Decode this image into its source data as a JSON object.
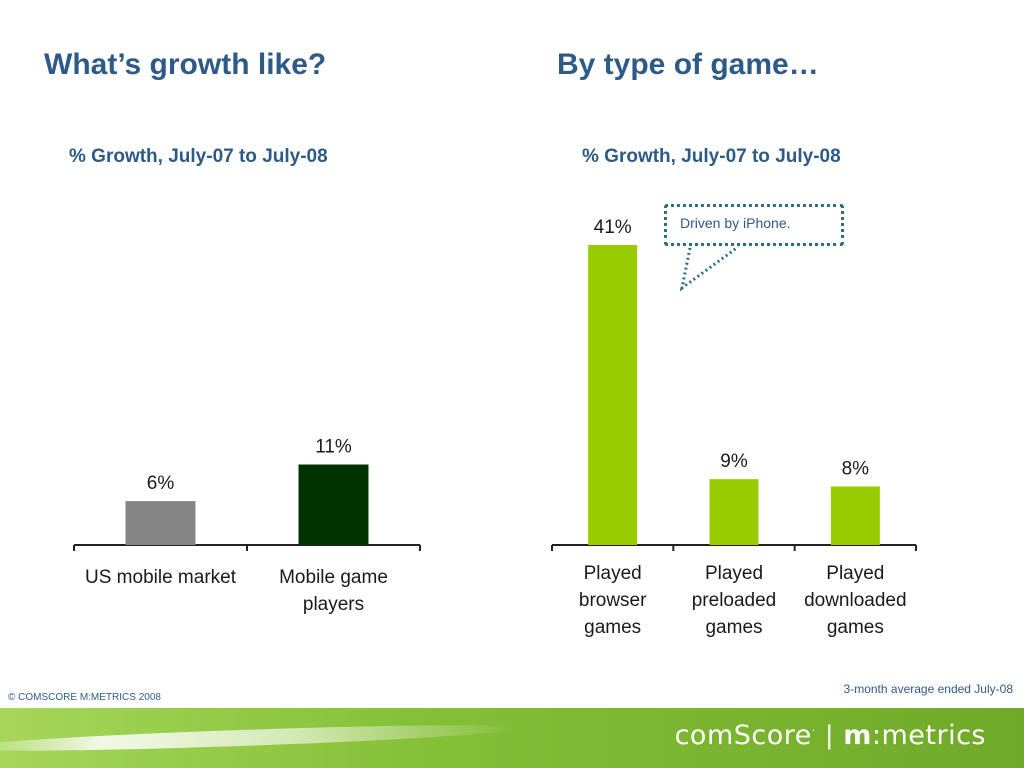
{
  "slide": {
    "left_heading": "What’s growth like?",
    "right_heading": "By type of game…",
    "copyright": "© COMSCORE M:METRICS 2008",
    "footnote": "3-month average ended July-08",
    "callout_text": "Driven by iPhone.",
    "logo": {
      "brand_a": "comScore",
      "brand_b_bold": "m",
      "brand_b_colon": ":",
      "brand_b_rest": "metrics"
    }
  },
  "colors": {
    "heading": "#2e5a87",
    "gray_bar": "#868686",
    "dark_green_bar": "#003300",
    "lime_bar": "#99cc00",
    "footer_green": "#86c038"
  },
  "chart_data": [
    {
      "type": "bar",
      "title": "% Growth, July-07 to July-08",
      "categories": [
        "US mobile market",
        "Mobile game players"
      ],
      "category_lines": [
        [
          "US mobile market"
        ],
        [
          "Mobile game",
          "players"
        ]
      ],
      "values": [
        6,
        11
      ],
      "value_labels": [
        "6%",
        "11%"
      ],
      "bar_colors": [
        "#868686",
        "#003300"
      ],
      "ylim": [
        0,
        41
      ],
      "grid": false,
      "legend": "none"
    },
    {
      "type": "bar",
      "title": "% Growth, July-07 to July-08",
      "categories": [
        "Played browser games",
        "Played preloaded games",
        "Played downloaded games"
      ],
      "category_lines": [
        [
          "Played",
          "browser",
          "games"
        ],
        [
          "Played",
          "preloaded",
          "games"
        ],
        [
          "Played",
          "downloaded",
          "games"
        ]
      ],
      "values": [
        41,
        9,
        8
      ],
      "value_labels": [
        "41%",
        "9%",
        "8%"
      ],
      "bar_colors": [
        "#99cc00",
        "#99cc00",
        "#99cc00"
      ],
      "ylim": [
        0,
        41
      ],
      "grid": false,
      "legend": "none",
      "annotation": "Driven by iPhone."
    }
  ]
}
